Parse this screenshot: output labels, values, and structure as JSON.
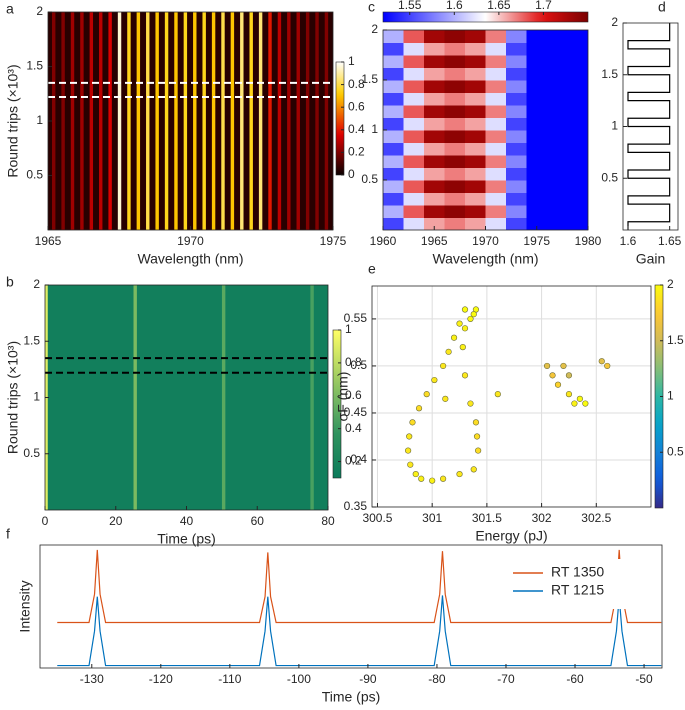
{
  "chart_data": [
    {
      "label": "a",
      "type": "heatmap",
      "xlabel": "Wavelength (nm)",
      "ylabel": "Round trips (×10³)",
      "xlim": [
        1965,
        1975
      ],
      "xticks": [
        1965,
        1970,
        1975
      ],
      "ylim": [
        0,
        2
      ],
      "yticks": [
        0.5,
        1,
        1.5,
        2
      ],
      "colormap": "hot",
      "clim": [
        0,
        1
      ],
      "cticks": [
        0,
        0.2,
        0.4,
        0.6,
        0.8,
        1
      ],
      "background": 0.05,
      "x": [
        1965.2,
        1965.53,
        1965.86,
        1966.19,
        1966.52,
        1966.85,
        1967.18,
        1967.51,
        1967.84,
        1968.17,
        1968.5,
        1968.83,
        1969.16,
        1969.49,
        1969.82,
        1970.15,
        1970.48,
        1970.81,
        1971.14,
        1971.47,
        1971.8,
        1972.13,
        1972.46,
        1972.79,
        1973.12,
        1973.45,
        1973.78,
        1974.11,
        1974.44,
        1974.77
      ],
      "values": [
        0.2,
        0.2,
        0.25,
        0.25,
        0.3,
        0.3,
        0.35,
        0.95,
        0.75,
        0.7,
        0.8,
        0.7,
        0.75,
        0.7,
        0.75,
        0.7,
        0.75,
        0.7,
        0.8,
        0.7,
        0.85,
        0.75,
        0.85,
        0.4,
        0.3,
        0.25,
        0.25,
        0.2,
        0.2,
        0.2
      ],
      "hlines": [
        1.35,
        1.22
      ],
      "hline_color": "#ffffff"
    },
    {
      "label": "b",
      "type": "heatmap",
      "xlabel": "Time (ps)",
      "ylabel": "Round trips (×10³)",
      "xlim": [
        0,
        80
      ],
      "xticks": [
        0,
        20,
        40,
        60,
        80
      ],
      "ylim": [
        0,
        2
      ],
      "yticks": [
        0.5,
        1,
        1.5,
        2
      ],
      "colormap": "summer",
      "clim": [
        0.1,
        1
      ],
      "cticks": [
        0.2,
        0.4,
        0.6,
        0.8,
        1
      ],
      "background": 0.15,
      "x": [
        0.3,
        25.5,
        50.5,
        75.5
      ],
      "values": [
        0.9,
        0.6,
        0.5,
        0.45
      ],
      "hlines": [
        1.35,
        1.22
      ],
      "hline_color": "#000000"
    },
    {
      "label": "c",
      "type": "heatmap",
      "xlabel": "Wavelength (nm)",
      "xlim": [
        1960,
        1980
      ],
      "xticks": [
        1960,
        1965,
        1970,
        1975,
        1980
      ],
      "ylim": [
        0,
        2
      ],
      "yticks": [
        0.5,
        1,
        1.5,
        2
      ],
      "colormap": "bwr",
      "clim": [
        1.52,
        1.75
      ],
      "cticks": [
        1.55,
        1.6,
        1.65,
        1.7
      ],
      "x_edges": [
        1960,
        1962,
        1964,
        1966,
        1968,
        1970,
        1972,
        1974,
        1976,
        1980
      ],
      "y_edges": [
        0,
        0.125,
        0.25,
        0.375,
        0.5,
        0.625,
        0.75,
        0.875,
        1,
        1.125,
        1.25,
        1.375,
        1.5,
        1.625,
        1.75,
        1.875,
        2
      ],
      "z": [
        [
          1.55,
          1.62,
          1.66,
          1.67,
          1.66,
          1.62,
          1.55,
          1.5,
          1.52
        ],
        [
          1.6,
          1.68,
          1.73,
          1.74,
          1.73,
          1.67,
          1.58,
          1.52,
          1.52
        ],
        [
          1.55,
          1.62,
          1.66,
          1.67,
          1.66,
          1.62,
          1.55,
          1.5,
          1.52
        ],
        [
          1.6,
          1.68,
          1.73,
          1.74,
          1.73,
          1.67,
          1.58,
          1.52,
          1.52
        ],
        [
          1.55,
          1.62,
          1.66,
          1.67,
          1.66,
          1.62,
          1.55,
          1.5,
          1.52
        ],
        [
          1.6,
          1.68,
          1.73,
          1.74,
          1.73,
          1.67,
          1.58,
          1.52,
          1.52
        ],
        [
          1.55,
          1.62,
          1.66,
          1.67,
          1.66,
          1.62,
          1.55,
          1.5,
          1.52
        ],
        [
          1.6,
          1.68,
          1.73,
          1.74,
          1.73,
          1.67,
          1.58,
          1.52,
          1.52
        ],
        [
          1.55,
          1.62,
          1.66,
          1.67,
          1.66,
          1.62,
          1.55,
          1.5,
          1.52
        ],
        [
          1.6,
          1.68,
          1.73,
          1.74,
          1.73,
          1.67,
          1.58,
          1.52,
          1.52
        ],
        [
          1.55,
          1.62,
          1.66,
          1.67,
          1.66,
          1.62,
          1.55,
          1.5,
          1.52
        ],
        [
          1.6,
          1.68,
          1.73,
          1.74,
          1.73,
          1.67,
          1.58,
          1.52,
          1.52
        ],
        [
          1.55,
          1.62,
          1.66,
          1.67,
          1.66,
          1.62,
          1.55,
          1.5,
          1.52
        ],
        [
          1.6,
          1.68,
          1.73,
          1.74,
          1.73,
          1.67,
          1.58,
          1.52,
          1.52
        ],
        [
          1.55,
          1.62,
          1.66,
          1.67,
          1.66,
          1.62,
          1.55,
          1.5,
          1.52
        ],
        [
          1.6,
          1.68,
          1.73,
          1.74,
          1.73,
          1.67,
          1.58,
          1.52,
          1.52
        ]
      ]
    },
    {
      "label": "d",
      "type": "line",
      "xlabel": "Gain",
      "color": "#000000",
      "xlim": [
        1.594,
        1.66
      ],
      "xticks": [
        1.6,
        1.65
      ],
      "ylim": [
        0,
        2
      ],
      "yticks": [
        0.5,
        1,
        1.5,
        2
      ],
      "x": [
        1.6,
        1.6,
        1.65,
        1.65,
        1.6,
        1.6,
        1.65,
        1.65,
        1.6,
        1.6,
        1.65,
        1.65,
        1.6,
        1.6,
        1.65,
        1.65,
        1.6,
        1.6,
        1.65,
        1.65,
        1.6,
        1.6,
        1.65,
        1.65,
        1.6,
        1.6,
        1.65,
        1.65,
        1.6,
        1.6,
        1.65,
        1.65
      ],
      "y": [
        0,
        0.08,
        0.08,
        0.25,
        0.25,
        0.33,
        0.33,
        0.5,
        0.5,
        0.58,
        0.58,
        0.75,
        0.75,
        0.83,
        0.83,
        1,
        1,
        1.08,
        1.08,
        1.25,
        1.25,
        1.33,
        1.33,
        1.5,
        1.5,
        1.58,
        1.58,
        1.75,
        1.75,
        1.83,
        1.83,
        2
      ]
    },
    {
      "label": "e",
      "type": "scatter",
      "xlabel": "Energy (pJ)",
      "ylabel": "σF (nm)",
      "grid": true,
      "xlim": [
        300.45,
        303
      ],
      "xticks": [
        300.5,
        301,
        301.5,
        302,
        302.5
      ],
      "ylim": [
        0.35,
        0.585
      ],
      "yticks": [
        0.35,
        0.4,
        0.45,
        0.5,
        0.55
      ],
      "colormap": "parula",
      "clim": [
        0,
        2
      ],
      "cticks": [
        0.5,
        1,
        1.5,
        2
      ],
      "x": [
        301.3,
        301.25,
        301.2,
        301.15,
        301.1,
        301.02,
        300.95,
        300.88,
        300.82,
        300.79,
        300.78,
        300.8,
        300.85,
        300.9,
        301.0,
        301.1,
        301.25,
        301.38,
        301.42,
        301.41,
        301.4,
        301.35,
        301.3,
        301.28,
        301.3,
        301.35,
        301.4,
        301.38,
        301.6,
        301.12,
        302.05,
        302.1,
        302.15,
        302.2,
        302.25,
        302.3,
        302.35,
        302.4,
        302.25,
        302.55,
        302.6
      ],
      "y": [
        0.56,
        0.545,
        0.53,
        0.515,
        0.5,
        0.485,
        0.47,
        0.455,
        0.44,
        0.425,
        0.41,
        0.395,
        0.385,
        0.38,
        0.378,
        0.38,
        0.385,
        0.39,
        0.41,
        0.425,
        0.44,
        0.46,
        0.49,
        0.52,
        0.54,
        0.55,
        0.56,
        0.555,
        0.47,
        0.465,
        0.5,
        0.49,
        0.48,
        0.5,
        0.47,
        0.46,
        0.465,
        0.46,
        0.49,
        0.505,
        0.5
      ],
      "c": [
        2,
        1.95,
        1.95,
        1.9,
        1.9,
        1.9,
        1.85,
        1.85,
        1.85,
        1.9,
        1.9,
        1.9,
        1.95,
        1.95,
        1.95,
        1.9,
        1.9,
        1.9,
        1.85,
        1.85,
        1.85,
        1.9,
        1.9,
        1.95,
        1.95,
        2,
        2,
        2,
        1.9,
        1.9,
        1.6,
        1.7,
        1.8,
        1.6,
        1.9,
        1.95,
        2,
        2,
        1.5,
        1.6,
        1.7
      ]
    },
    {
      "label": "f",
      "type": "line",
      "xlabel": "Time (ps)",
      "ylabel": "Intensity",
      "legend": "upper right",
      "xlim": [
        -137.5,
        -47.4
      ],
      "xticks": [
        -130,
        -120,
        -110,
        -100,
        -90,
        -80,
        -70,
        -60,
        -50
      ],
      "ylim": [
        0,
        1
      ],
      "x": [
        -135,
        -130.4,
        -129.6,
        -129.2,
        -128.8,
        -128,
        -105.7,
        -104.9,
        -104.5,
        -104.1,
        -103.3,
        -80.4,
        -79.6,
        -79.2,
        -78.8,
        -78,
        -54.8,
        -54,
        -53.6,
        -53.2,
        -52.4,
        -47.5
      ],
      "series": [
        {
          "name": "RT 1350",
          "color": "#d95319",
          "values": [
            0.37,
            0.37,
            0.6,
            0.96,
            0.6,
            0.37,
            0.37,
            0.58,
            0.94,
            0.58,
            0.37,
            0.37,
            0.6,
            0.95,
            0.6,
            0.37,
            0.37,
            0.6,
            0.96,
            0.6,
            0.37,
            0.37
          ]
        },
        {
          "name": "RT 1215",
          "color": "#0072bd",
          "values": [
            0.02,
            0.02,
            0.3,
            0.58,
            0.3,
            0.02,
            0.02,
            0.3,
            0.58,
            0.3,
            0.02,
            0.02,
            0.3,
            0.59,
            0.3,
            0.02,
            0.02,
            0.3,
            0.58,
            0.3,
            0.02,
            0.02
          ]
        }
      ]
    }
  ]
}
